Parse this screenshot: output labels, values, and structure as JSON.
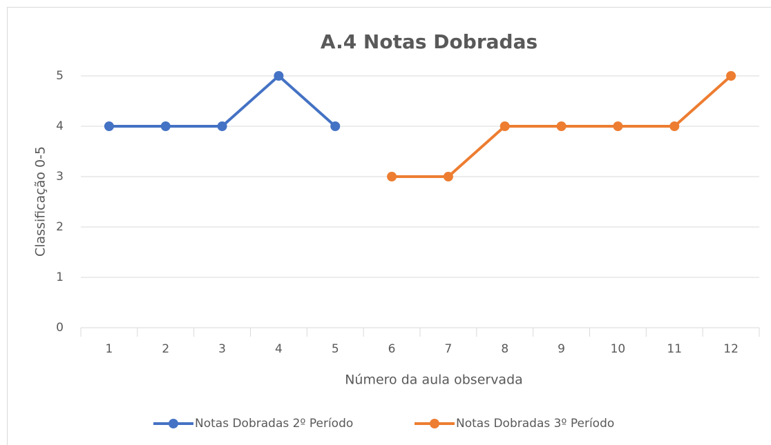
{
  "chart_data": {
    "type": "line",
    "title": "A.4 Notas Dobradas",
    "xlabel": "Número da aula observada",
    "ylabel": "Classificação 0-5",
    "categories": [
      "1",
      "2",
      "3",
      "4",
      "5",
      "6",
      "7",
      "8",
      "9",
      "10",
      "11",
      "12"
    ],
    "series": [
      {
        "name": "Notas Dobradas 2º Período",
        "color": "#4472c4",
        "values": [
          4,
          4,
          4,
          5,
          4,
          null,
          null,
          null,
          null,
          null,
          null,
          null
        ]
      },
      {
        "name": "Notas Dobradas 3º Período",
        "color": "#ed7d31",
        "values": [
          null,
          null,
          null,
          null,
          null,
          3,
          3,
          4,
          4,
          4,
          4,
          5
        ]
      }
    ],
    "ylim": [
      0,
      5
    ],
    "yticks": [
      0,
      1,
      2,
      3,
      4,
      5
    ],
    "grid": true,
    "legend": "bottom"
  }
}
